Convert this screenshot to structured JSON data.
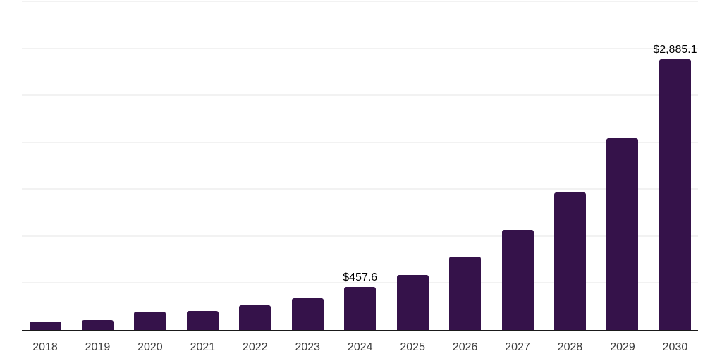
{
  "chart_data": {
    "type": "bar",
    "title": "",
    "xlabel": "",
    "ylabel": "",
    "categories": [
      "2018",
      "2019",
      "2020",
      "2021",
      "2022",
      "2023",
      "2024",
      "2025",
      "2026",
      "2027",
      "2028",
      "2029",
      "2030"
    ],
    "values": [
      90,
      108,
      198,
      205,
      265,
      341,
      457.6,
      585,
      780,
      1070,
      1465,
      2045,
      2885.1
    ],
    "data_labels": {
      "2024": "$457.6",
      "2030": "$2,885.1"
    },
    "ylim": [
      0,
      3500
    ],
    "gridline_interval": 500,
    "y_tick_labels_visible": false,
    "legend": "none",
    "grid": "horizontal",
    "colors": {
      "bar": "#35124a",
      "axis": "#1a1a1a",
      "gridline": "#f2f2f2",
      "tick_label": "#3d3d3d",
      "value_label": "#000000"
    }
  }
}
